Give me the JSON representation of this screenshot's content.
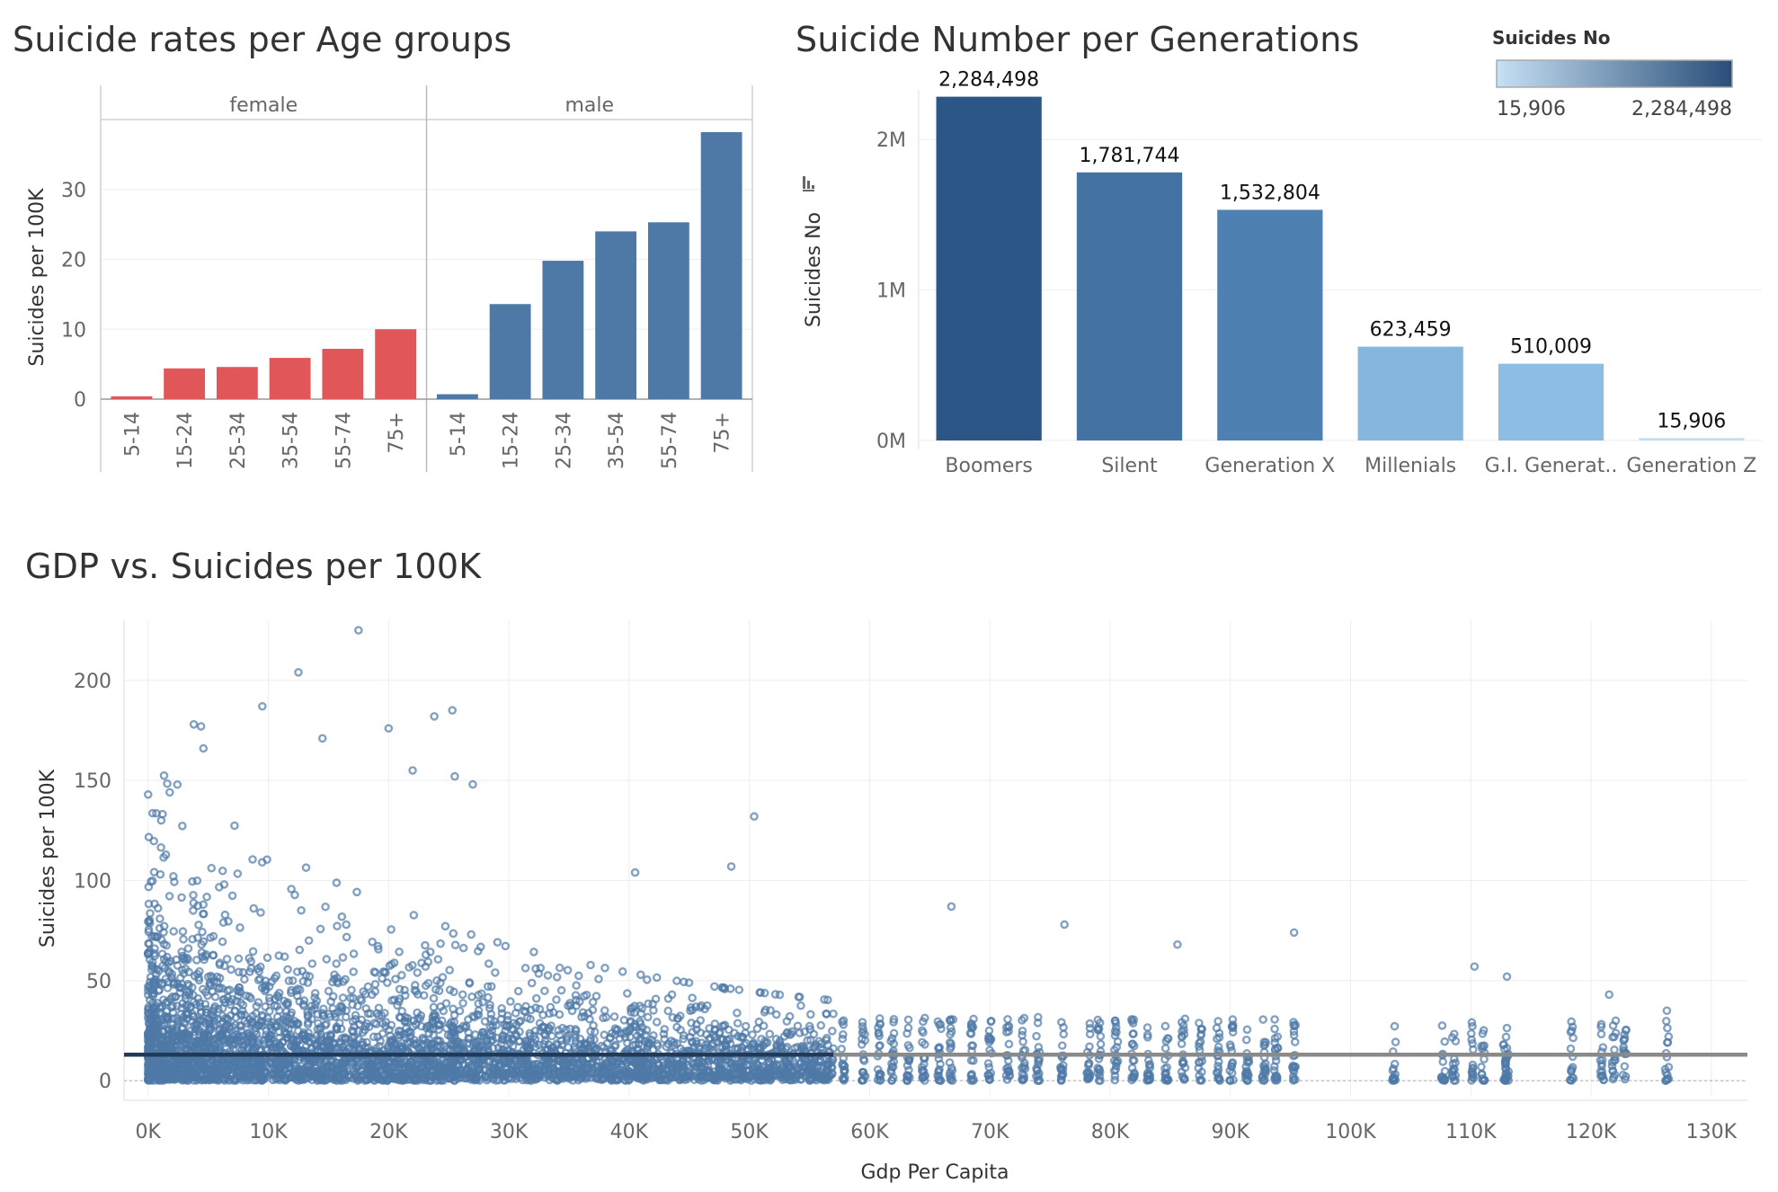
{
  "chart_data": [
    {
      "type": "bar",
      "title": "Suicide rates per Age groups",
      "ylabel": "Suicides per 100K",
      "ylim": [
        0,
        40
      ],
      "yticks": [
        0,
        10,
        20,
        30
      ],
      "panels": [
        "female",
        "male"
      ],
      "categories": [
        "5-14",
        "15-24",
        "25-34",
        "35-54",
        "55-74",
        "75+"
      ],
      "series": [
        {
          "name": "female",
          "color": "#e15759",
          "values": [
            0.4,
            4.4,
            4.6,
            5.9,
            7.2,
            10.0
          ]
        },
        {
          "name": "male",
          "color": "#4e79a7",
          "values": [
            0.7,
            13.6,
            19.8,
            24.0,
            25.3,
            38.2
          ]
        }
      ],
      "grid": true
    },
    {
      "type": "bar",
      "title": "Suicide Number per Generations",
      "ylabel": "Suicides No",
      "ylim": [
        0,
        2300000
      ],
      "yticks": [
        0,
        1000000,
        2000000
      ],
      "ytick_labels": [
        "0M",
        "1M",
        "2M"
      ],
      "categories": [
        "Boomers",
        "Silent",
        "Generation X",
        "Millenials",
        "G.I. Generat..",
        "Generation Z"
      ],
      "values": [
        2284498,
        1781744,
        1532804,
        623459,
        510009,
        15906
      ],
      "data_labels": [
        "2,284,498",
        "1,781,744",
        "1,532,804",
        "623,459",
        "510,009",
        "15,906"
      ],
      "colors": [
        "#2c5685",
        "#4472a2",
        "#4f80b2",
        "#85b6dc",
        "#8dbde2",
        "#c4ddf0"
      ],
      "legend": {
        "title": "Suicides No",
        "min_label": "15,906",
        "max_label": "2,284,498",
        "gradient": [
          "#c6e0f4",
          "#2a4e79"
        ],
        "placement": "top-right"
      },
      "grid": true
    },
    {
      "type": "scatter",
      "title": "GDP vs. Suicides per 100K",
      "xlabel": "Gdp Per Capita",
      "ylabel": "Suicides per 100K",
      "xlim": [
        -2000,
        133000
      ],
      "ylim": [
        -8,
        230
      ],
      "xticks": [
        0,
        10000,
        20000,
        30000,
        40000,
        50000,
        60000,
        70000,
        80000,
        90000,
        100000,
        110000,
        120000,
        130000
      ],
      "xtick_labels": [
        "0K",
        "10K",
        "20K",
        "30K",
        "40K",
        "50K",
        "60K",
        "70K",
        "80K",
        "90K",
        "100K",
        "110K",
        "120K",
        "130K"
      ],
      "yticks": [
        0,
        50,
        100,
        150,
        200
      ],
      "color": "#4e79a7",
      "trend_line_y": 13,
      "notable_points": [
        {
          "x": 17500,
          "y": 225
        },
        {
          "x": 12500,
          "y": 204
        },
        {
          "x": 9500,
          "y": 187
        },
        {
          "x": 3800,
          "y": 178
        },
        {
          "x": 4400,
          "y": 177
        },
        {
          "x": 20000,
          "y": 176
        },
        {
          "x": 14500,
          "y": 171
        },
        {
          "x": 23800,
          "y": 182
        },
        {
          "x": 25300,
          "y": 185
        },
        {
          "x": 4600,
          "y": 166
        },
        {
          "x": 22000,
          "y": 155
        },
        {
          "x": 25500,
          "y": 152
        },
        {
          "x": 27000,
          "y": 148
        },
        {
          "x": 50400,
          "y": 132
        },
        {
          "x": 48500,
          "y": 107
        },
        {
          "x": 40500,
          "y": 104
        },
        {
          "x": 66800,
          "y": 87
        },
        {
          "x": 76200,
          "y": 78
        },
        {
          "x": 95300,
          "y": 74
        },
        {
          "x": 85600,
          "y": 68
        },
        {
          "x": 110300,
          "y": 57
        },
        {
          "x": 113000,
          "y": 52
        },
        {
          "x": 121500,
          "y": 43
        },
        {
          "x": 126300,
          "y": 35
        }
      ],
      "grid": true
    }
  ]
}
